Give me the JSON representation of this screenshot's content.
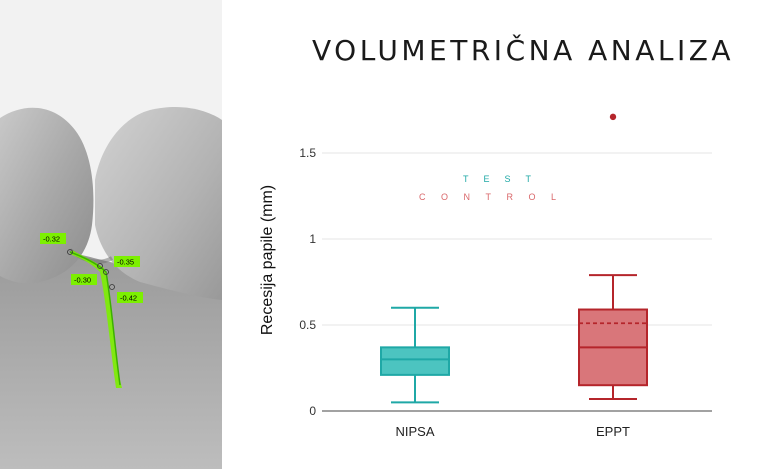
{
  "title": "VOLUMETRIČNA ANALIZA",
  "scan": {
    "measurements": [
      "-0.32",
      "-0.35",
      "-0.30",
      "-0.42"
    ],
    "highlight_color": "#7cf000"
  },
  "chart_data": {
    "type": "box",
    "ylabel": "Recesija papile (mm)",
    "xlabel": "",
    "ylim": [
      0,
      1.6
    ],
    "yticks": [
      {
        "value": 0,
        "label": "0"
      },
      {
        "value": 0.5,
        "label": "0.5"
      },
      {
        "value": 1,
        "label": "1"
      },
      {
        "value": 1.5,
        "label": "1.5"
      }
    ],
    "grid": true,
    "legend": {
      "position": "center",
      "items": [
        "TEST",
        "CONTROL"
      ]
    },
    "categories": [
      "NIPSA",
      "EPPT"
    ],
    "series": [
      {
        "whisker_low": 0.05,
        "q1": 0.21,
        "median": 0.3,
        "q3": 0.37,
        "whisker_high": 0.6,
        "outliers": [],
        "color": "#1fa8a6",
        "fill": "#4cc4c0"
      },
      {
        "whisker_low": 0.07,
        "q1": 0.15,
        "median": 0.37,
        "mean": 0.51,
        "q3": 0.59,
        "whisker_high": 0.79,
        "outliers": [
          1.71
        ],
        "color": "#b5252b",
        "fill": "#d9767a"
      }
    ]
  }
}
